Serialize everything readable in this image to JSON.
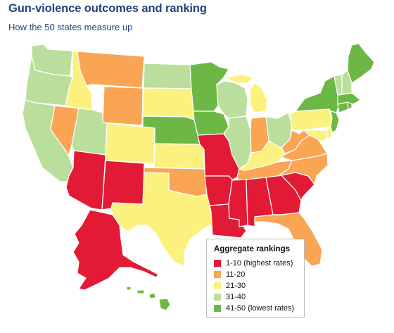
{
  "header": {
    "title": "Gun-violence outcomes and ranking",
    "subtitle": "How the 50 states measure up"
  },
  "legend": {
    "title": "Aggregate rankings",
    "items": [
      {
        "label": "1-10 (highest rates)",
        "color": "#e31a35"
      },
      {
        "label": "11-20",
        "color": "#f9a553"
      },
      {
        "label": "21-30",
        "color": "#fbf17f"
      },
      {
        "label": "31-40",
        "color": "#badf9c"
      },
      {
        "label": "41-50 (lowest rates)",
        "color": "#6db845"
      }
    ]
  },
  "states": [
    {
      "abbr": "WA",
      "group": 4
    },
    {
      "abbr": "OR",
      "group": 4
    },
    {
      "abbr": "CA",
      "group": 4
    },
    {
      "abbr": "NV",
      "group": 2
    },
    {
      "abbr": "ID",
      "group": 3
    },
    {
      "abbr": "MT",
      "group": 2
    },
    {
      "abbr": "WY",
      "group": 2
    },
    {
      "abbr": "UT",
      "group": 4
    },
    {
      "abbr": "CO",
      "group": 3
    },
    {
      "abbr": "AZ",
      "group": 1
    },
    {
      "abbr": "NM",
      "group": 1
    },
    {
      "abbr": "ND",
      "group": 4
    },
    {
      "abbr": "SD",
      "group": 3
    },
    {
      "abbr": "NE",
      "group": 5
    },
    {
      "abbr": "KS",
      "group": 3
    },
    {
      "abbr": "OK",
      "group": 2
    },
    {
      "abbr": "TX",
      "group": 3
    },
    {
      "abbr": "MN",
      "group": 5
    },
    {
      "abbr": "IA",
      "group": 5
    },
    {
      "abbr": "MO",
      "group": 1
    },
    {
      "abbr": "AR",
      "group": 1
    },
    {
      "abbr": "LA",
      "group": 1
    },
    {
      "abbr": "WI",
      "group": 4
    },
    {
      "abbr": "IL",
      "group": 4
    },
    {
      "abbr": "MI",
      "group": 3
    },
    {
      "abbr": "IN",
      "group": 2
    },
    {
      "abbr": "OH",
      "group": 4
    },
    {
      "abbr": "KY",
      "group": 3
    },
    {
      "abbr": "TN",
      "group": 2
    },
    {
      "abbr": "MS",
      "group": 1
    },
    {
      "abbr": "AL",
      "group": 1
    },
    {
      "abbr": "GA",
      "group": 1
    },
    {
      "abbr": "FL",
      "group": 2
    },
    {
      "abbr": "SC",
      "group": 1
    },
    {
      "abbr": "NC",
      "group": 2
    },
    {
      "abbr": "VA",
      "group": 2
    },
    {
      "abbr": "WV",
      "group": 2
    },
    {
      "abbr": "PA",
      "group": 3
    },
    {
      "abbr": "NY",
      "group": 5
    },
    {
      "abbr": "NJ",
      "group": 5
    },
    {
      "abbr": "DE",
      "group": 3
    },
    {
      "abbr": "MD",
      "group": 3
    },
    {
      "abbr": "CT",
      "group": 5
    },
    {
      "abbr": "RI",
      "group": 5
    },
    {
      "abbr": "MA",
      "group": 5
    },
    {
      "abbr": "VT",
      "group": 4
    },
    {
      "abbr": "NH",
      "group": 4
    },
    {
      "abbr": "ME",
      "group": 5
    },
    {
      "abbr": "AK",
      "group": 1
    },
    {
      "abbr": "HI",
      "group": 5
    }
  ]
}
